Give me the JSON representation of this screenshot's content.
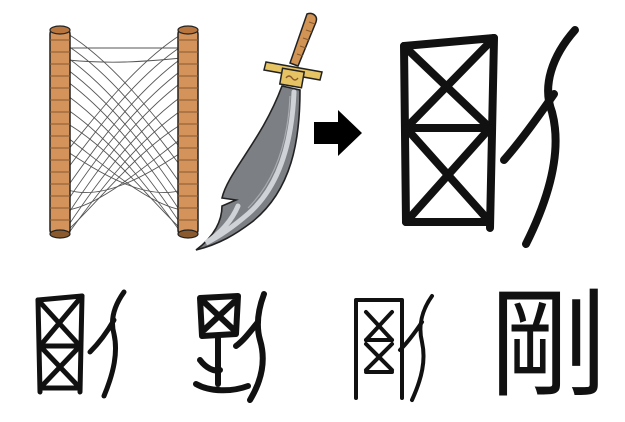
{
  "colors": {
    "wood": "#d3935a",
    "wood_dark": "#8a5a2e",
    "thread": "#555555",
    "blade": "#7c7f84",
    "blade_edge": "#cfd3d7",
    "guard": "#e6c463",
    "handle": "#d19455",
    "ink": "#111111"
  },
  "icons": {
    "loom": "warp-frame-icon",
    "knife": "curved-blade-icon",
    "arrow": "right-arrow-icon"
  },
  "characters": {
    "modern": "剛"
  }
}
